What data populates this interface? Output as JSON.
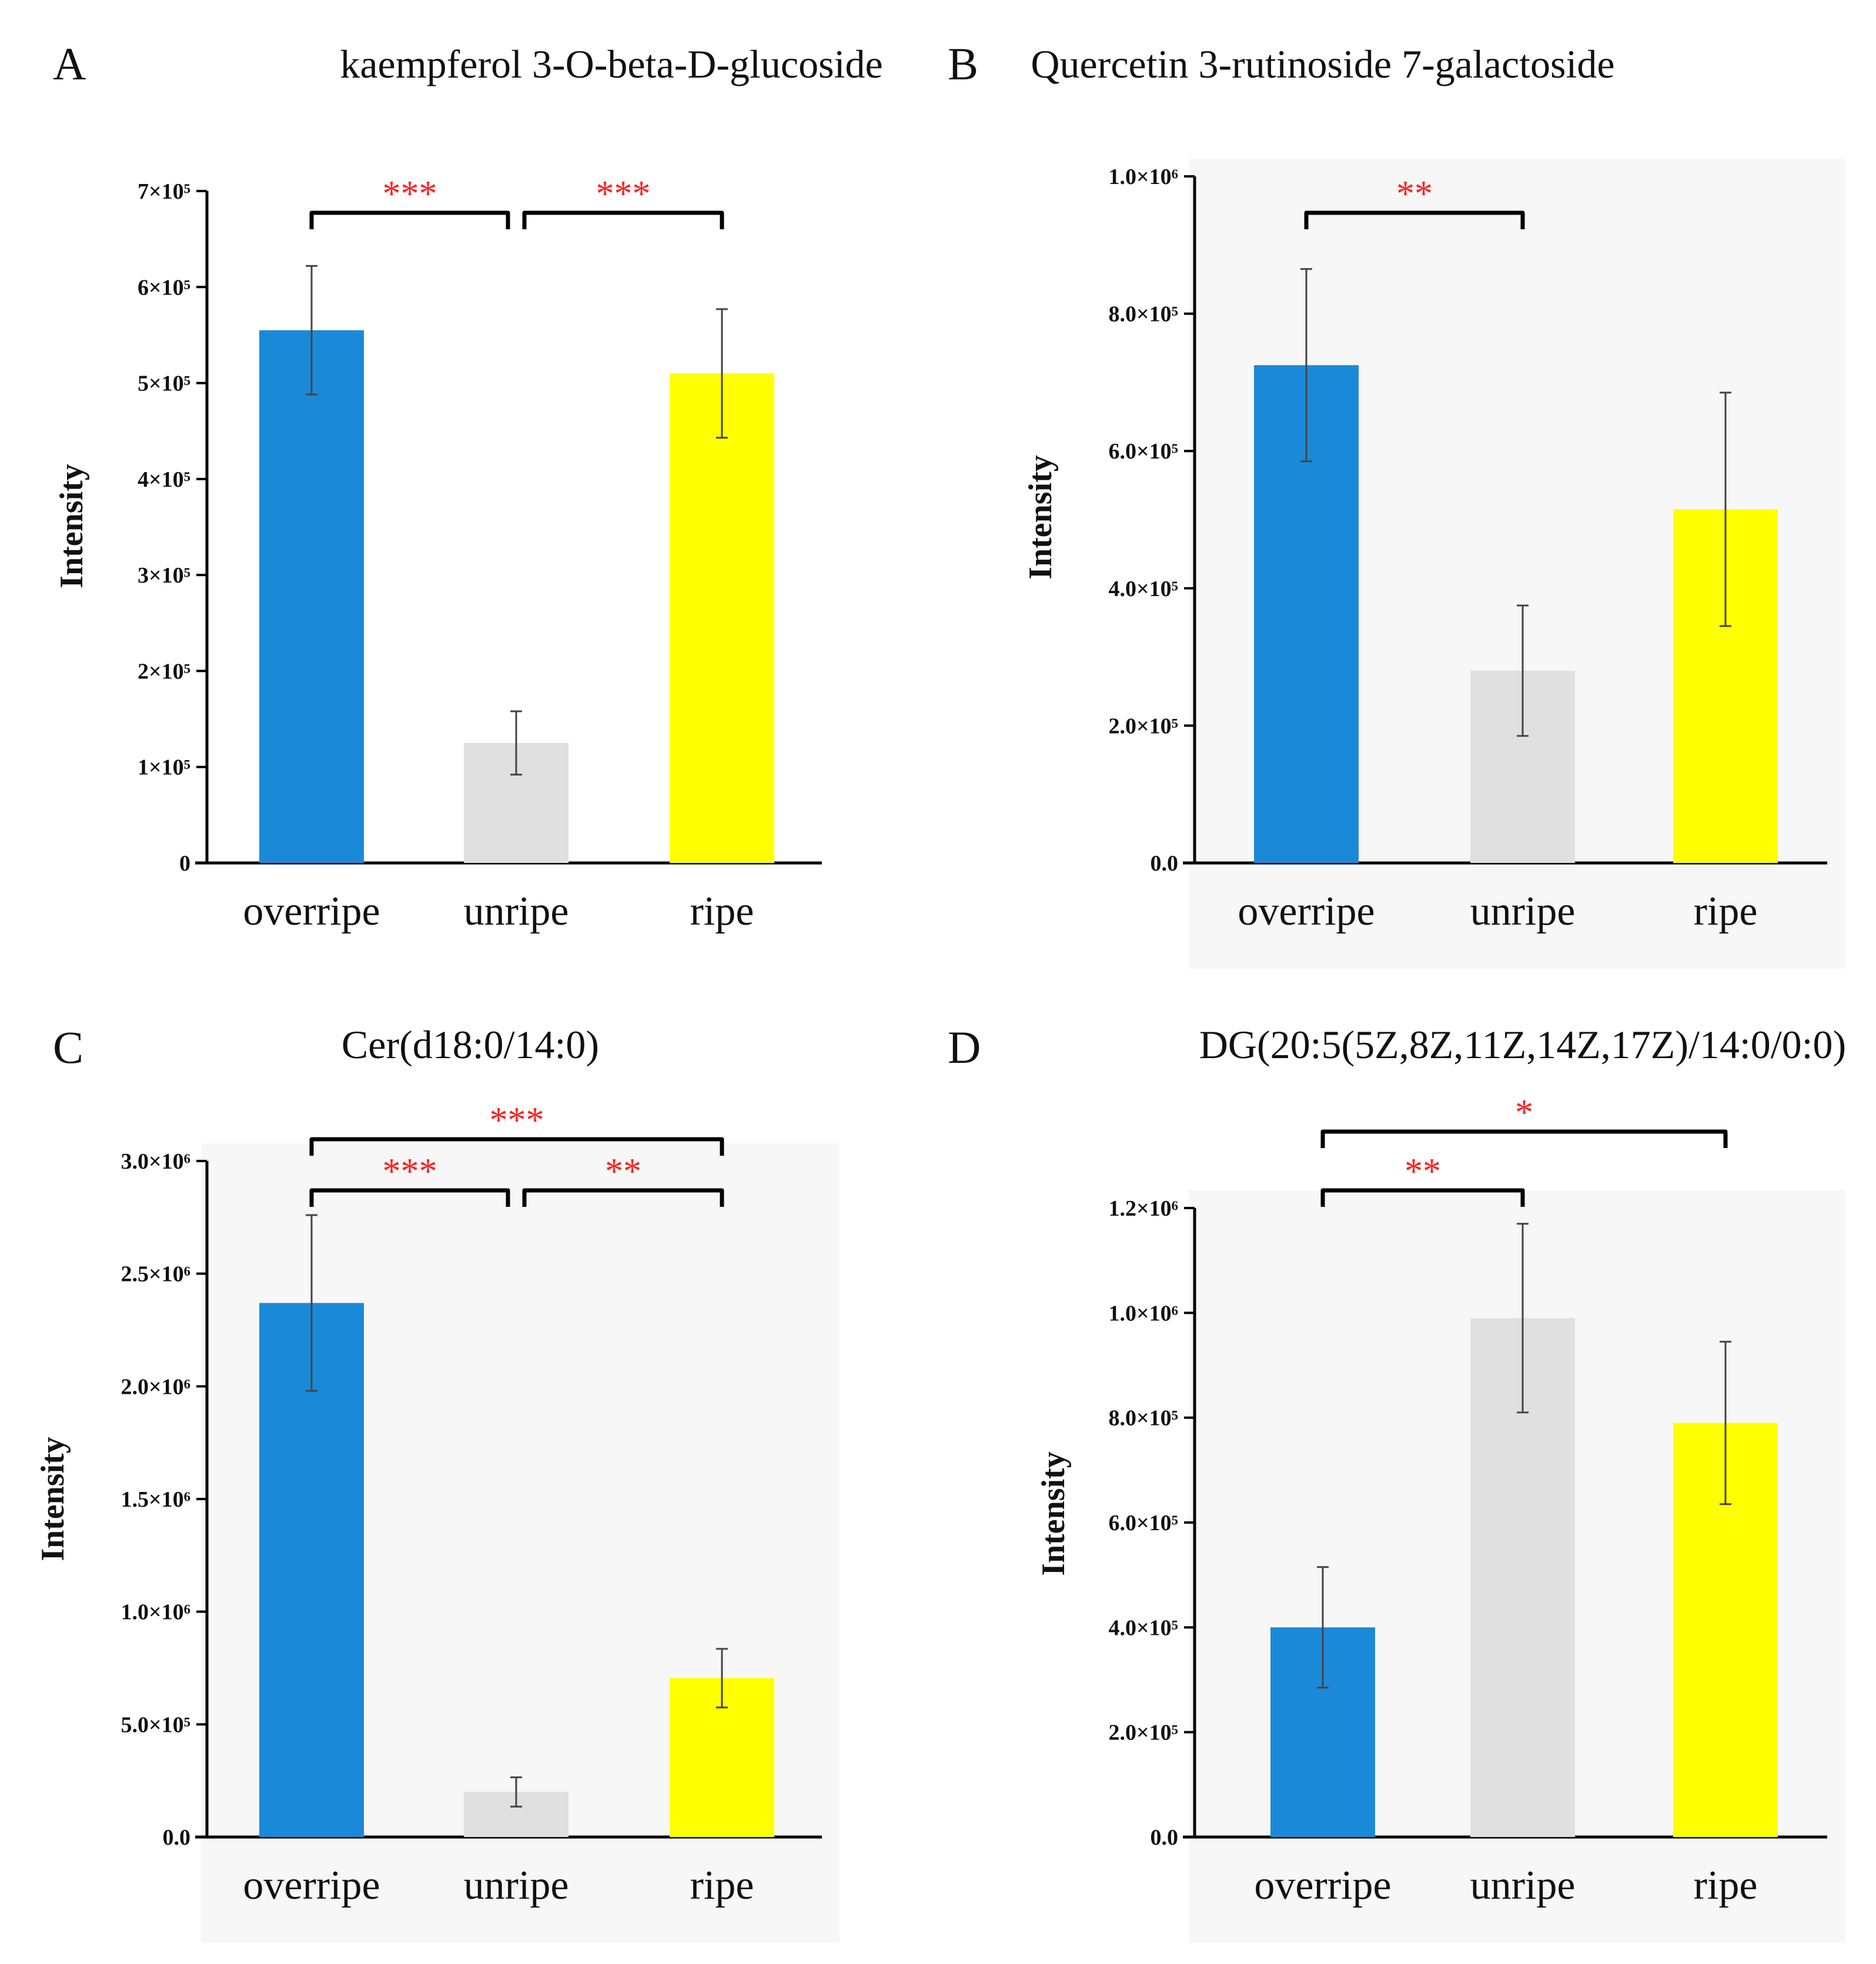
{
  "chart_data": [
    {
      "type": "bar",
      "panel": "A",
      "title": "kaempferol 3-O-beta-D-glucoside",
      "ylabel": "Intensity",
      "categories": [
        "overripe",
        "unripe",
        "ripe"
      ],
      "values": [
        555000,
        125000,
        510000
      ],
      "errors": [
        67000,
        33000,
        67000
      ],
      "ylim": [
        0,
        700000
      ],
      "yticks": [
        {
          "value": 0,
          "label": "0"
        },
        {
          "value": 100000,
          "label": "1×10⁵"
        },
        {
          "value": 200000,
          "label": "2×10⁵"
        },
        {
          "value": 300000,
          "label": "3×10⁵"
        },
        {
          "value": 400000,
          "label": "4×10⁵"
        },
        {
          "value": 500000,
          "label": "5×10⁵"
        },
        {
          "value": 600000,
          "label": "6×10⁵"
        },
        {
          "value": 700000,
          "label": "7×10⁵"
        }
      ],
      "colors": [
        "#1a8ad8",
        "#e0e0e0",
        "#ffff00"
      ],
      "significance": [
        {
          "from": 0,
          "to": 1,
          "label": "***",
          "level": 0
        },
        {
          "from": 1,
          "to": 2,
          "label": "***",
          "level": 0
        }
      ]
    },
    {
      "type": "bar",
      "panel": "B",
      "title": "Quercetin 3-rutinoside 7-galactoside",
      "ylabel": "Intensity",
      "categories": [
        "overripe",
        "unripe",
        "ripe"
      ],
      "values": [
        725000,
        280000,
        515000
      ],
      "errors": [
        140000,
        95000,
        170000
      ],
      "ylim": [
        0,
        1000000
      ],
      "yticks": [
        {
          "value": 0,
          "label": "0.0"
        },
        {
          "value": 200000,
          "label": "2.0×10⁵"
        },
        {
          "value": 400000,
          "label": "4.0×10⁵"
        },
        {
          "value": 600000,
          "label": "6.0×10⁵"
        },
        {
          "value": 800000,
          "label": "8.0×10⁵"
        },
        {
          "value": 1000000,
          "label": "1.0×10⁶"
        }
      ],
      "colors": [
        "#1a8ad8",
        "#e0e0e0",
        "#ffff00"
      ],
      "significance": [
        {
          "from": 0,
          "to": 1,
          "label": "**",
          "level": 0
        }
      ]
    },
    {
      "type": "bar",
      "panel": "C",
      "title": "Cer(d18:0/14:0)",
      "ylabel": "Intensity",
      "categories": [
        "overripe",
        "unripe",
        "ripe"
      ],
      "values": [
        2370000,
        200000,
        705000
      ],
      "errors": [
        390000,
        65000,
        130000
      ],
      "ylim": [
        0,
        3000000
      ],
      "yticks": [
        {
          "value": 0,
          "label": "0.0"
        },
        {
          "value": 500000,
          "label": "5.0×10⁵"
        },
        {
          "value": 1000000,
          "label": "1.0×10⁶"
        },
        {
          "value": 1500000,
          "label": "1.5×10⁶"
        },
        {
          "value": 2000000,
          "label": "2.0×10⁶"
        },
        {
          "value": 2500000,
          "label": "2.5×10⁶"
        },
        {
          "value": 3000000,
          "label": "3.0×10⁶"
        }
      ],
      "colors": [
        "#1a8ad8",
        "#e0e0e0",
        "#ffff00"
      ],
      "significance": [
        {
          "from": 0,
          "to": 1,
          "label": "***",
          "level": 0
        },
        {
          "from": 1,
          "to": 2,
          "label": "**",
          "level": 0
        },
        {
          "from": 0,
          "to": 2,
          "label": "***",
          "level": 1
        }
      ]
    },
    {
      "type": "bar",
      "panel": "D",
      "title": "DG(20:5(5Z,8Z,11Z,14Z,17Z)/14:0/0:0)",
      "ylabel": "Intensity",
      "categories": [
        "overripe",
        "unripe",
        "ripe"
      ],
      "values": [
        400000,
        990000,
        790000
      ],
      "errors": [
        115000,
        180000,
        155000
      ],
      "ylim": [
        0,
        1200000
      ],
      "yticks": [
        {
          "value": 0,
          "label": "0.0"
        },
        {
          "value": 200000,
          "label": "2.0×10⁵"
        },
        {
          "value": 400000,
          "label": "4.0×10⁵"
        },
        {
          "value": 600000,
          "label": "6.0×10⁵"
        },
        {
          "value": 800000,
          "label": "8.0×10⁵"
        },
        {
          "value": 1000000,
          "label": "1.0×10⁶"
        },
        {
          "value": 1200000,
          "label": "1.2×10⁶"
        }
      ],
      "colors": [
        "#1a8ad8",
        "#e0e0e0",
        "#ffff00"
      ],
      "significance": [
        {
          "from": 0,
          "to": 1,
          "label": "**",
          "level": 0
        },
        {
          "from": 0,
          "to": 2,
          "label": "*",
          "level": 1
        }
      ]
    }
  ]
}
